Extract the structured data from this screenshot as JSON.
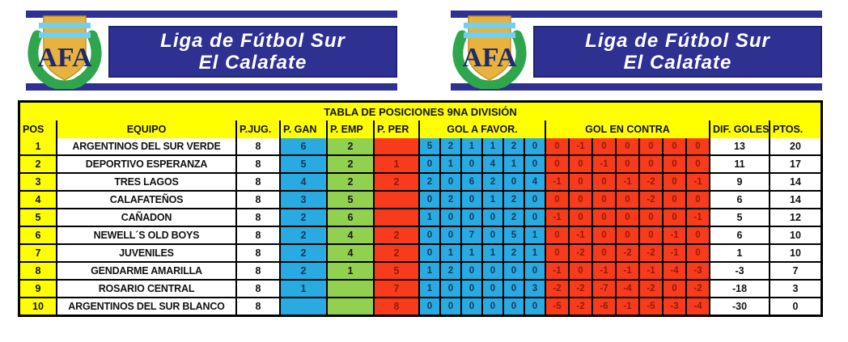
{
  "branding": {
    "league_title_line1": "Liga de Fútbol Sur",
    "league_title_line2": "El Calafate",
    "crest_monogram": "AFA",
    "colors": {
      "banner_navy": "#2E3192",
      "crest_gold": "#E8B33C",
      "crest_stripe_cyan": "#6FD0F6",
      "laurel_green": "#2FA64D",
      "monogram_navy": "#1F2A6B"
    }
  },
  "table": {
    "title": "TABLA DE POSICIONES 9NA DIVISIÓN",
    "headers": {
      "pos": "POS",
      "equipo": "EQUIPO",
      "pjug": "P.JUG.",
      "pgan": "P. GAN",
      "pemp": "P. EMP",
      "pper": "P. PER",
      "gaf": "GOL A FAVOR.",
      "gec": "GOL EN CONTRA",
      "dif": "DIF. GOLES",
      "ptos": "PTOS."
    },
    "colors": {
      "header_yellow": "#FFFF00",
      "win_blue": "#29ABE2",
      "draw_green": "#92D050",
      "loss_red": "#F93B1D",
      "gridline_black": "#000000",
      "win_text_navy": "#17375E",
      "loss_text_maroon": "#8F1D00"
    },
    "rows": [
      {
        "pos": "1",
        "equipo": "ARGENTINOS DEL SUR VERDE",
        "pjug": "8",
        "pgan": "6",
        "pemp": "2",
        "pper": "",
        "gaf": [
          "5",
          "2",
          "1",
          "1",
          "2",
          "0"
        ],
        "gec": [
          "0",
          "-1",
          "0",
          "0",
          "0",
          "0",
          "0"
        ],
        "dif": "13",
        "ptos": "20"
      },
      {
        "pos": "2",
        "equipo": "DEPORTIVO ESPERANZA",
        "pjug": "8",
        "pgan": "5",
        "pemp": "2",
        "pper": "1",
        "gaf": [
          "0",
          "1",
          "0",
          "4",
          "1",
          "0"
        ],
        "gec": [
          "0",
          "0",
          "-1",
          "0",
          "0",
          "0",
          "0"
        ],
        "dif": "11",
        "ptos": "17"
      },
      {
        "pos": "3",
        "equipo": "TRES LAGOS",
        "pjug": "8",
        "pgan": "4",
        "pemp": "2",
        "pper": "2",
        "gaf": [
          "2",
          "0",
          "6",
          "2",
          "0",
          "4"
        ],
        "gec": [
          "-1",
          "0",
          "0",
          "-1",
          "-2",
          "0",
          "-1"
        ],
        "dif": "9",
        "ptos": "14"
      },
      {
        "pos": "4",
        "equipo": "CALAFATEÑOS",
        "pjug": "8",
        "pgan": "3",
        "pemp": "5",
        "pper": "",
        "gaf": [
          "0",
          "2",
          "0",
          "1",
          "2",
          "0"
        ],
        "gec": [
          "0",
          "0",
          "0",
          "0",
          "-2",
          "0",
          "0"
        ],
        "dif": "6",
        "ptos": "14"
      },
      {
        "pos": "5",
        "equipo": "CAÑADON",
        "pjug": "8",
        "pgan": "2",
        "pemp": "6",
        "pper": "",
        "gaf": [
          "1",
          "0",
          "0",
          "0",
          "2",
          "0"
        ],
        "gec": [
          "-1",
          "0",
          "0",
          "0",
          "0",
          "0",
          "-1"
        ],
        "dif": "5",
        "ptos": "12"
      },
      {
        "pos": "6",
        "equipo": "NEWELL´S OLD BOYS",
        "pjug": "8",
        "pgan": "2",
        "pemp": "4",
        "pper": "2",
        "gaf": [
          "0",
          "0",
          "7",
          "0",
          "5",
          "1"
        ],
        "gec": [
          "0",
          "-1",
          "0",
          "0",
          "0",
          "-1",
          "0"
        ],
        "dif": "6",
        "ptos": "10"
      },
      {
        "pos": "7",
        "equipo": "JUVENILES",
        "pjug": "8",
        "pgan": "2",
        "pemp": "4",
        "pper": "2",
        "gaf": [
          "0",
          "1",
          "1",
          "1",
          "2",
          "1"
        ],
        "gec": [
          "0",
          "-2",
          "0",
          "-2",
          "-2",
          "-1",
          "0"
        ],
        "dif": "1",
        "ptos": "10"
      },
      {
        "pos": "8",
        "equipo": "GENDARME AMARILLA",
        "pjug": "8",
        "pgan": "2",
        "pemp": "1",
        "pper": "5",
        "gaf": [
          "1",
          "2",
          "0",
          "0",
          "0",
          "0"
        ],
        "gec": [
          "-1",
          "0",
          "-1",
          "-1",
          "-1",
          "-4",
          "-3"
        ],
        "dif": "-3",
        "ptos": "7"
      },
      {
        "pos": "9",
        "equipo": "ROSARIO CENTRAL",
        "pjug": "8",
        "pgan": "1",
        "pemp": "",
        "pper": "7",
        "gaf": [
          "1",
          "0",
          "0",
          "0",
          "0",
          "3"
        ],
        "gec": [
          "-2",
          "-2",
          "-7",
          "-4",
          "-2",
          "0",
          "-2"
        ],
        "dif": "-18",
        "ptos": "3"
      },
      {
        "pos": "10",
        "equipo": "ARGENTINOS DEL SUR BLANCO",
        "pjug": "8",
        "pgan": "",
        "pemp": "",
        "pper": "8",
        "gaf": [
          "0",
          "0",
          "0",
          "0",
          "0",
          "0"
        ],
        "gec": [
          "-5",
          "-2",
          "-6",
          "-1",
          "-5",
          "-3",
          "-4"
        ],
        "dif": "-30",
        "ptos": "0"
      }
    ]
  }
}
